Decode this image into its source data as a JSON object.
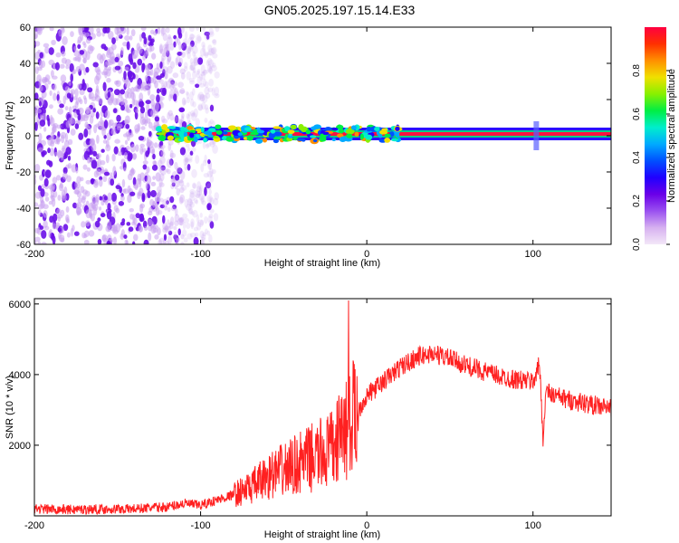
{
  "figure": {
    "title": "GN05.2025.197.15.14.E33"
  },
  "chart_data": [
    {
      "type": "heatmap",
      "title": "GN05.2025.197.15.14.E33",
      "xlabel": "Height of straight line (km)",
      "ylabel": "Frequency (Hz)",
      "xlim": [
        -200,
        147
      ],
      "ylim": [
        -60,
        60
      ],
      "xticks": [
        -200,
        -100,
        0,
        100
      ],
      "yticks": [
        60,
        40,
        20,
        0,
        -20,
        -40,
        -60
      ],
      "colorbar": {
        "label": "Normalized spectral amplitude",
        "range": [
          0.0,
          1.0
        ],
        "ticks": [
          0.0,
          0.2,
          0.4,
          0.6,
          0.8
        ],
        "colors": [
          "#f3e8f8",
          "#d6b0f0",
          "#9a50f0",
          "#6a00e8",
          "#2000ff",
          "#0050ff",
          "#00aaff",
          "#00eecc",
          "#00ee44",
          "#88f000",
          "#f0e000",
          "#ff9000",
          "#ff3000",
          "#ff0040"
        ]
      },
      "features": [
        {
          "name": "broadband-noise",
          "x_range": [
            -200,
            -90
          ],
          "f_range": [
            -60,
            60
          ],
          "amplitude": 0.1
        },
        {
          "name": "narrow-band",
          "x_range": [
            -125,
            147
          ],
          "f_center": 1,
          "amplitude": 0.9
        },
        {
          "name": "spike",
          "x": 102,
          "f_range": [
            -8,
            8
          ],
          "amplitude": 0.3
        }
      ]
    },
    {
      "type": "line",
      "xlabel": "Height of straight line (km)",
      "ylabel": "SNR (10 * v/v)",
      "xlim": [
        -200,
        147
      ],
      "ylim": [
        0,
        6150
      ],
      "xticks": [
        -200,
        -100,
        0,
        100
      ],
      "yticks": [
        2000,
        4000,
        6000
      ],
      "series": [
        {
          "color": "#ff2020",
          "x": [
            -200,
            -180,
            -160,
            -140,
            -120,
            -110,
            -100,
            -90,
            -80,
            -70,
            -60,
            -50,
            -40,
            -30,
            -20,
            -15,
            -10,
            -5,
            0,
            10,
            20,
            30,
            40,
            50,
            60,
            70,
            80,
            90,
            100,
            104,
            106,
            108,
            110,
            120,
            130,
            140,
            147
          ],
          "y": [
            200,
            180,
            190,
            200,
            250,
            350,
            300,
            450,
            600,
            800,
            1100,
            1300,
            1500,
            1700,
            1900,
            2300,
            2700,
            3000,
            3400,
            3800,
            4200,
            4500,
            4600,
            4450,
            4250,
            4100,
            3950,
            3850,
            3800,
            4300,
            2200,
            3600,
            3450,
            3300,
            3200,
            3100,
            3050
          ]
        }
      ]
    }
  ]
}
